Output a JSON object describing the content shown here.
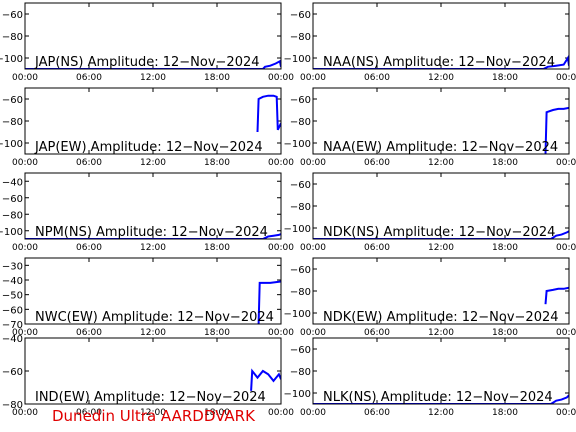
{
  "footer": "Dunedin Ultra AARDDVARK",
  "colors": {
    "trace": "#0000ff",
    "axis": "#000000",
    "footer": "#e00000"
  },
  "chart_data": [
    {
      "type": "line",
      "title": "JAP(NS) Amplitude: 12-Nov-2024",
      "xlabel": "",
      "ylabel": "",
      "x_ticks": [
        "00:00",
        "06:00",
        "12:00",
        "18:00",
        "00:00"
      ],
      "y_ticks": [
        -60,
        -80,
        -100
      ],
      "ylim": [
        -110,
        -50
      ],
      "xlim_hours": [
        0,
        24
      ],
      "series": [
        {
          "x": [
            0,
            22.3,
            22.5,
            23.0,
            23.5,
            23.9,
            24
          ],
          "y": [
            -110,
            -110,
            -108,
            -107,
            -105,
            -103,
            -108
          ]
        }
      ]
    },
    {
      "type": "line",
      "title": "NAA(NS) Amplitude: 12-Nov-2024",
      "xlabel": "",
      "ylabel": "",
      "x_ticks": [
        "00:00",
        "06:00",
        "12:00",
        "18:00",
        "00:00"
      ],
      "y_ticks": [
        -60,
        -80,
        -100
      ],
      "ylim": [
        -110,
        -50
      ],
      "xlim_hours": [
        0,
        24
      ],
      "series": [
        {
          "x": [
            0,
            21.6,
            22.0,
            22.8,
            23.5,
            23.9,
            24
          ],
          "y": [
            -110,
            -110,
            -108,
            -107,
            -106,
            -100,
            -107
          ]
        }
      ]
    },
    {
      "type": "line",
      "title": "JAP(EW) Amplitude: 12-Nov-2024",
      "xlabel": "",
      "ylabel": "",
      "x_ticks": [
        "00:00",
        "06:00",
        "12:00",
        "18:00",
        "00:00"
      ],
      "y_ticks": [
        -60,
        -80,
        -100
      ],
      "ylim": [
        -110,
        -50
      ],
      "xlim_hours": [
        0,
        24
      ],
      "series": [
        {
          "x": [
            21.8,
            21.9,
            22.3,
            22.8,
            23.3,
            23.6,
            23.7,
            24
          ],
          "y": [
            -90,
            -60,
            -58,
            -57,
            -57,
            -58,
            -88,
            -82
          ]
        }
      ]
    },
    {
      "type": "line",
      "title": "NAA(EW) Amplitude: 12-Nov-2024",
      "xlabel": "",
      "ylabel": "",
      "x_ticks": [
        "00:00",
        "06:00",
        "12:00",
        "18:00",
        "00:00"
      ],
      "y_ticks": [
        -60,
        -80,
        -100
      ],
      "ylim": [
        -110,
        -50
      ],
      "xlim_hours": [
        0,
        24
      ],
      "series": [
        {
          "x": [
            21.8,
            21.9,
            22.5,
            23.0,
            23.5,
            24
          ],
          "y": [
            -110,
            -72,
            -70,
            -69,
            -69,
            -68
          ]
        }
      ]
    },
    {
      "type": "line",
      "title": "NPM(NS) Amplitude: 12-Nov-2024",
      "xlabel": "",
      "ylabel": "",
      "x_ticks": [
        "00:00",
        "06:00",
        "12:00",
        "18:00",
        "00:00"
      ],
      "y_ticks": [
        -40,
        -60,
        -80,
        -100
      ],
      "ylim": [
        -110,
        -30
      ],
      "xlim_hours": [
        0,
        24
      ],
      "series": [
        {
          "x": [
            0,
            22.3,
            22.8,
            23.3,
            23.8,
            24
          ],
          "y": [
            -110,
            -110,
            -107,
            -106,
            -105,
            -104
          ]
        }
      ]
    },
    {
      "type": "line",
      "title": "NDK(NS) Amplitude: 12-Nov-2024",
      "xlabel": "",
      "ylabel": "",
      "x_ticks": [
        "00:00",
        "06:00",
        "12:00",
        "18:00",
        "00:00"
      ],
      "y_ticks": [
        -60,
        -80,
        -100
      ],
      "ylim": [
        -110,
        -50
      ],
      "xlim_hours": [
        0,
        24
      ],
      "series": [
        {
          "x": [
            0,
            22.3,
            22.8,
            23.3,
            23.8,
            24
          ],
          "y": [
            -110,
            -110,
            -107,
            -106,
            -104,
            -103
          ]
        }
      ]
    },
    {
      "type": "line",
      "title": "NWC(EW) Amplitude: 12-Nov-2024",
      "xlabel": "",
      "ylabel": "",
      "x_ticks": [
        "00:00",
        "06:00",
        "12:00",
        "18:00",
        "00:00"
      ],
      "y_ticks": [
        -30,
        -40,
        -50,
        -60,
        -70
      ],
      "ylim": [
        -70,
        -25
      ],
      "xlim_hours": [
        0,
        24
      ],
      "series": [
        {
          "x": [
            21.9,
            22.0,
            23.0,
            24
          ],
          "y": [
            -70,
            -42,
            -42,
            -41
          ]
        }
      ]
    },
    {
      "type": "line",
      "title": "NDK(EW) Amplitude: 12-Nov-2024",
      "xlabel": "",
      "ylabel": "",
      "x_ticks": [
        "00:00",
        "06:00",
        "12:00",
        "18:00",
        "00:00"
      ],
      "y_ticks": [
        -60,
        -80,
        -100
      ],
      "ylim": [
        -110,
        -50
      ],
      "xlim_hours": [
        0,
        24
      ],
      "series": [
        {
          "x": [
            21.8,
            21.9,
            22.5,
            23.0,
            23.5,
            24
          ],
          "y": [
            -92,
            -80,
            -79,
            -78,
            -78,
            -77
          ]
        }
      ]
    },
    {
      "type": "line",
      "title": "IND(EW) Amplitude: 12-Nov-2024",
      "xlabel": "",
      "ylabel": "",
      "x_ticks": [
        "00:00",
        "06:00",
        "12:00",
        "18:00",
        "00:00"
      ],
      "y_ticks": [
        -40,
        -60,
        -80
      ],
      "ylim": [
        -80,
        -40
      ],
      "xlim_hours": [
        0,
        24
      ],
      "series": [
        {
          "x": [
            21.2,
            21.3,
            21.8,
            22.3,
            22.8,
            23.3,
            23.8,
            24
          ],
          "y": [
            -72,
            -60,
            -64,
            -60,
            -62,
            -66,
            -62,
            -65
          ]
        }
      ]
    },
    {
      "type": "line",
      "title": "NLK(NS) Amplitude: 12-Nov-2024",
      "xlabel": "",
      "ylabel": "",
      "x_ticks": [
        "00:00",
        "06:00",
        "12:00",
        "18:00",
        "00:00"
      ],
      "y_ticks": [
        -60,
        -80,
        -100
      ],
      "ylim": [
        -110,
        -50
      ],
      "xlim_hours": [
        0,
        24
      ],
      "series": [
        {
          "x": [
            0,
            22.3,
            22.8,
            23.3,
            23.8,
            24
          ],
          "y": [
            -110,
            -110,
            -107,
            -106,
            -104,
            -102
          ]
        }
      ]
    }
  ]
}
